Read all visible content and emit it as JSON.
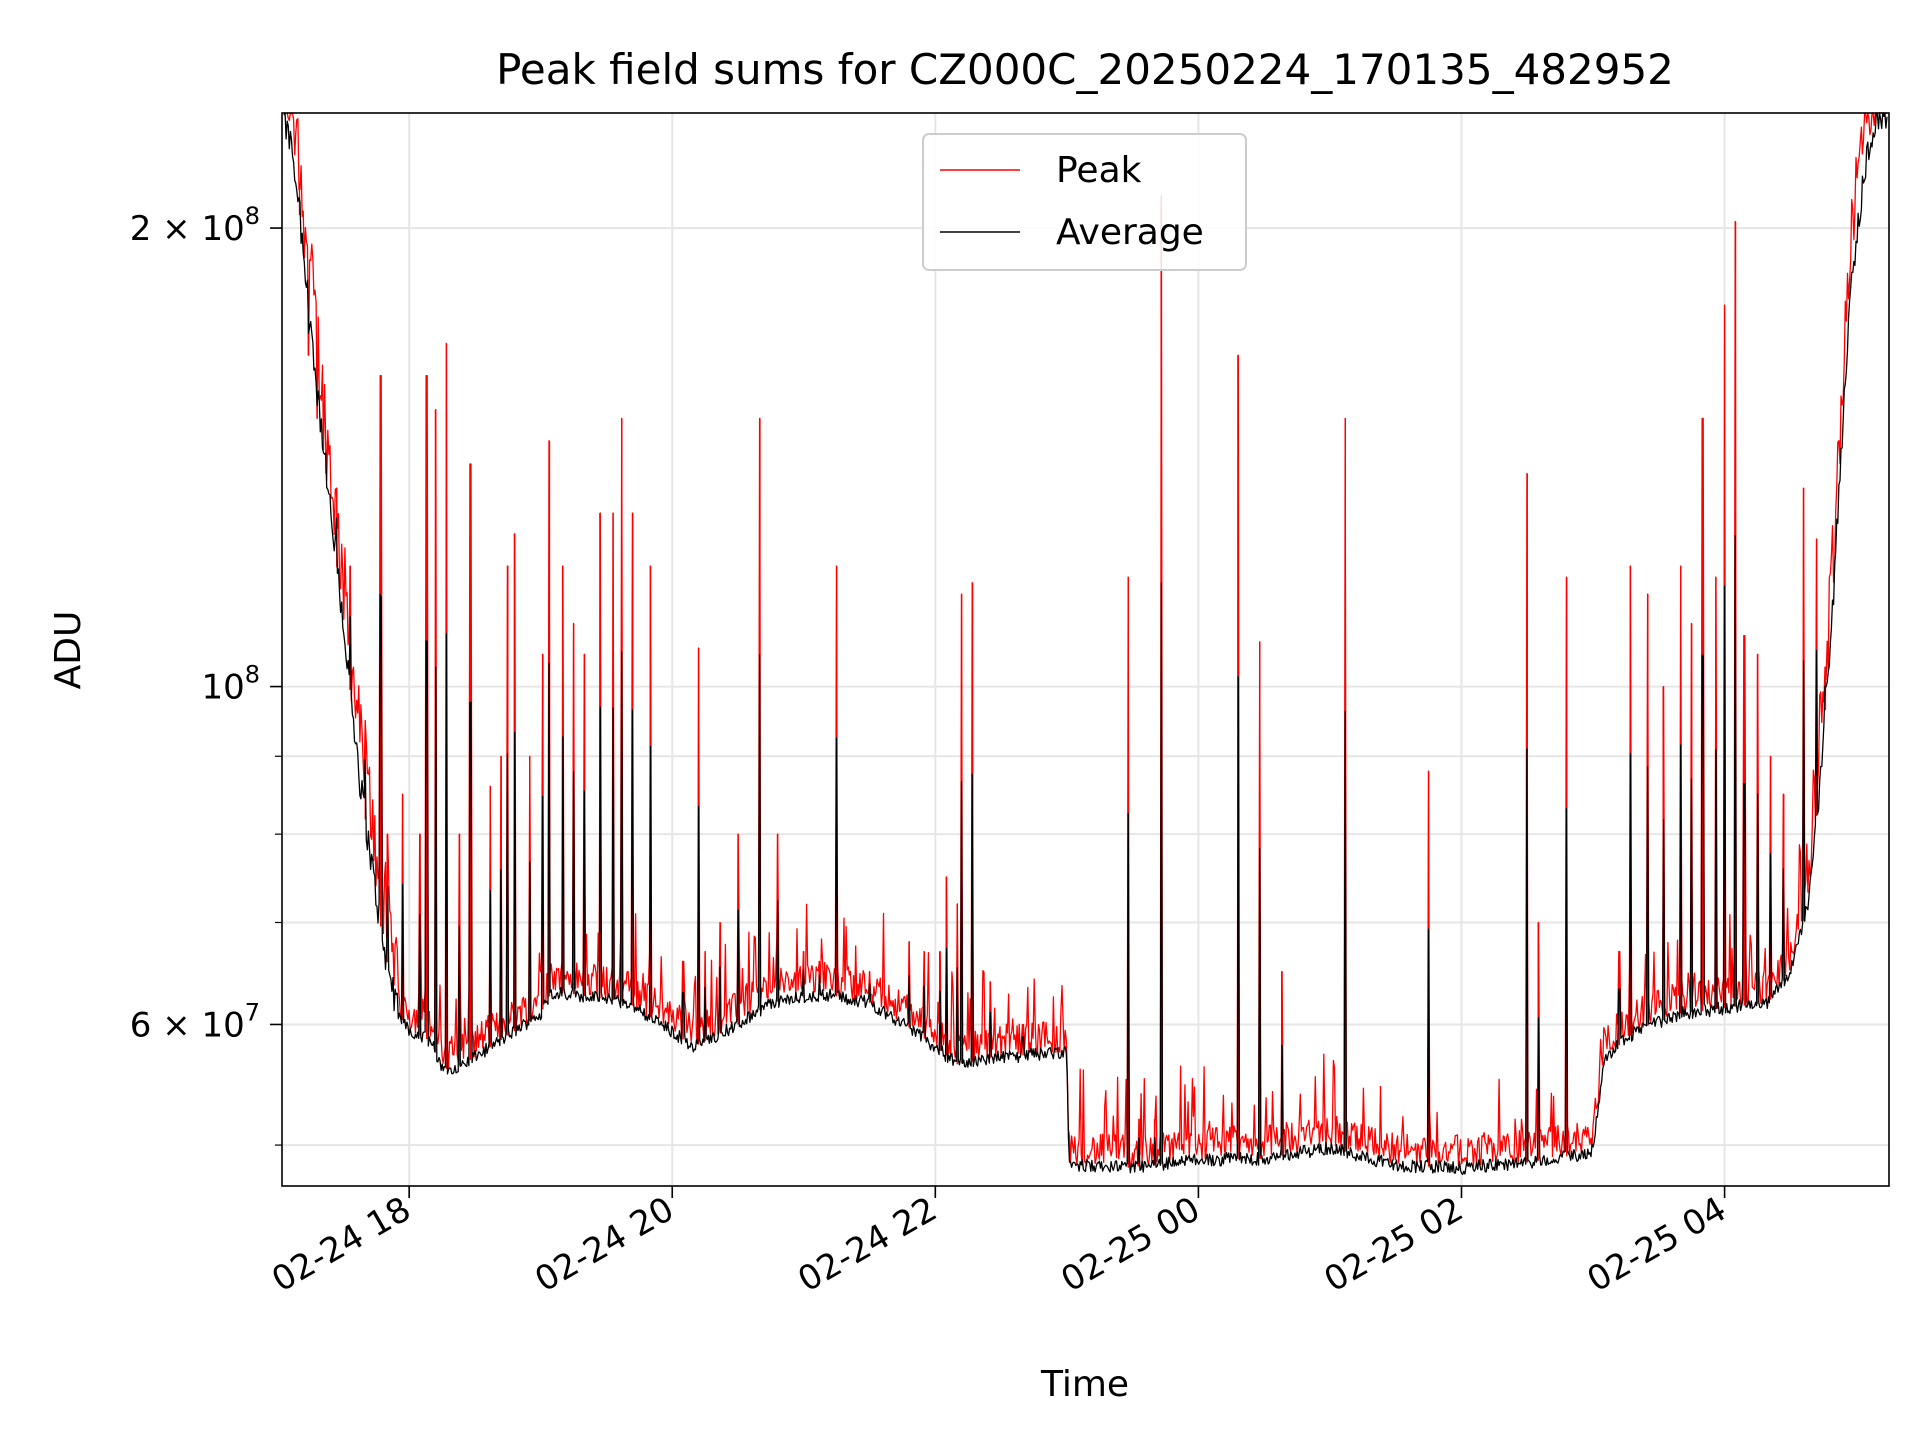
{
  "chart_data": {
    "type": "line",
    "title": "Peak field sums for CZ000C_20250224_170135_482952",
    "xlabel": "Time",
    "ylabel": "ADU",
    "x_scale": "time",
    "y_scale": "log",
    "xlim": [
      "2025-02-24 17:02",
      "2025-02-25 05:15"
    ],
    "ylim": [
      47000000,
      238000000
    ],
    "x_ticks": [
      {
        "value": "2025-02-24 18:00",
        "label": "02-24 18"
      },
      {
        "value": "2025-02-24 20:00",
        "label": "02-24 20"
      },
      {
        "value": "2025-02-24 22:00",
        "label": "02-24 22"
      },
      {
        "value": "2025-02-25 00:00",
        "label": "02-25 00"
      },
      {
        "value": "2025-02-25 02:00",
        "label": "02-25 02"
      },
      {
        "value": "2025-02-25 04:00",
        "label": "02-25 04"
      }
    ],
    "y_major_ticks": [
      {
        "value": 60000000,
        "label": "6 × 10",
        "exp": "7"
      },
      {
        "value": 100000000,
        "label": "10",
        "exp": "8"
      },
      {
        "value": 200000000,
        "label": "2 × 10",
        "exp": "8"
      }
    ],
    "y_minor_ticks": [
      50000000,
      70000000,
      80000000,
      90000000
    ],
    "grid": true,
    "legend": {
      "position": "upper center",
      "entries": [
        {
          "label": "Peak",
          "color": "#ff0000"
        },
        {
          "label": "Average",
          "color": "#000000"
        }
      ]
    },
    "series": [
      {
        "name": "Average",
        "color": "#000000",
        "baseline": [
          [
            "2025-02-24 17:02",
            238000000
          ],
          [
            "2025-02-24 17:07",
            224000000
          ],
          [
            "2025-02-24 17:14",
            180000000
          ],
          [
            "2025-02-24 17:22",
            138000000
          ],
          [
            "2025-02-24 17:30",
            110000000
          ],
          [
            "2025-02-24 17:36",
            90000000
          ],
          [
            "2025-02-24 17:42",
            78000000
          ],
          [
            "2025-02-24 17:48",
            68000000
          ],
          [
            "2025-02-24 17:55",
            61000000
          ],
          [
            "2025-02-24 18:00",
            59500000
          ],
          [
            "2025-02-24 18:10",
            58500000
          ],
          [
            "2025-02-24 18:15",
            56000000
          ],
          [
            "2025-02-24 18:25",
            56500000
          ],
          [
            "2025-02-24 18:45",
            59000000
          ],
          [
            "2025-02-24 19:00",
            61000000
          ],
          [
            "2025-02-24 19:05",
            63000000
          ],
          [
            "2025-02-24 19:15",
            62800000
          ],
          [
            "2025-02-24 19:40",
            62000000
          ],
          [
            "2025-02-24 19:55",
            60000000
          ],
          [
            "2025-02-24 20:10",
            58000000
          ],
          [
            "2025-02-24 20:30",
            60000000
          ],
          [
            "2025-02-24 20:45",
            62000000
          ],
          [
            "2025-02-24 21:10",
            62800000
          ],
          [
            "2025-02-24 21:30",
            62000000
          ],
          [
            "2025-02-24 21:50",
            59500000
          ],
          [
            "2025-02-24 22:10",
            56500000
          ],
          [
            "2025-02-24 22:25",
            57000000
          ],
          [
            "2025-02-24 22:55",
            57500000
          ],
          [
            "2025-02-24 23:00",
            57500000
          ],
          [
            "2025-02-24 23:01",
            48500000
          ],
          [
            "2025-02-24 23:30",
            48300000
          ],
          [
            "2025-02-25 00:00",
            48900000
          ],
          [
            "2025-02-25 00:30",
            49000000
          ],
          [
            "2025-02-25 01:00",
            49800000
          ],
          [
            "2025-02-25 01:30",
            48500000
          ],
          [
            "2025-02-25 02:00",
            48300000
          ],
          [
            "2025-02-25 02:30",
            48700000
          ],
          [
            "2025-02-25 02:58",
            49400000
          ],
          [
            "2025-02-25 03:00",
            49800000
          ],
          [
            "2025-02-25 03:05",
            57000000
          ],
          [
            "2025-02-25 03:20",
            59500000
          ],
          [
            "2025-02-25 03:40",
            61000000
          ],
          [
            "2025-02-25 04:00",
            61500000
          ],
          [
            "2025-02-25 04:20",
            62000000
          ],
          [
            "2025-02-25 04:30",
            65000000
          ],
          [
            "2025-02-25 04:38",
            72000000
          ],
          [
            "2025-02-25 04:43",
            85000000
          ],
          [
            "2025-02-25 04:48",
            105000000
          ],
          [
            "2025-02-25 04:53",
            140000000
          ],
          [
            "2025-02-25 04:58",
            185000000
          ],
          [
            "2025-02-25 05:05",
            225000000
          ],
          [
            "2025-02-25 05:10",
            238000000
          ]
        ]
      },
      {
        "name": "Peak",
        "color": "#ff0000",
        "spikes": [
          [
            "2025-02-24 17:10",
            212000000
          ],
          [
            "2025-02-24 17:14",
            165000000
          ],
          [
            "2025-02-24 17:18",
            150000000
          ],
          [
            "2025-02-24 17:22",
            145000000
          ],
          [
            "2025-02-24 17:27",
            135000000
          ],
          [
            "2025-02-24 17:33",
            120000000
          ],
          [
            "2025-02-24 17:40",
            95000000
          ],
          [
            "2025-02-24 17:47",
            160000000
          ],
          [
            "2025-02-24 17:50",
            80000000
          ],
          [
            "2025-02-24 17:57",
            85000000
          ],
          [
            "2025-02-24 18:05",
            80000000
          ],
          [
            "2025-02-24 18:08",
            160000000
          ],
          [
            "2025-02-24 18:12",
            152000000
          ],
          [
            "2025-02-24 18:17",
            168000000
          ],
          [
            "2025-02-24 18:23",
            80000000
          ],
          [
            "2025-02-24 18:28",
            140000000
          ],
          [
            "2025-02-24 18:37",
            86000000
          ],
          [
            "2025-02-24 18:42",
            90000000
          ],
          [
            "2025-02-24 18:45",
            120000000
          ],
          [
            "2025-02-24 18:48",
            126000000
          ],
          [
            "2025-02-24 18:55",
            90000000
          ],
          [
            "2025-02-24 19:01",
            105000000
          ],
          [
            "2025-02-24 19:04",
            145000000
          ],
          [
            "2025-02-24 19:10",
            120000000
          ],
          [
            "2025-02-24 19:15",
            110000000
          ],
          [
            "2025-02-24 19:20",
            105000000
          ],
          [
            "2025-02-24 19:27",
            130000000
          ],
          [
            "2025-02-24 19:33",
            130000000
          ],
          [
            "2025-02-24 19:37",
            150000000
          ],
          [
            "2025-02-24 19:42",
            130000000
          ],
          [
            "2025-02-24 19:50",
            120000000
          ],
          [
            "2025-02-24 20:05",
            66000000
          ],
          [
            "2025-02-24 20:12",
            106000000
          ],
          [
            "2025-02-24 20:15",
            67000000
          ],
          [
            "2025-02-24 20:22",
            70000000
          ],
          [
            "2025-02-24 20:30",
            80000000
          ],
          [
            "2025-02-24 20:40",
            150000000
          ],
          [
            "2025-02-24 20:48",
            80000000
          ],
          [
            "2025-02-24 21:00",
            67000000
          ],
          [
            "2025-02-24 21:07",
            66000000
          ],
          [
            "2025-02-24 21:15",
            120000000
          ],
          [
            "2025-02-24 21:30",
            65000000
          ],
          [
            "2025-02-24 21:48",
            68000000
          ],
          [
            "2025-02-24 21:55",
            67000000
          ],
          [
            "2025-02-24 22:02",
            67000000
          ],
          [
            "2025-02-24 22:05",
            75000000
          ],
          [
            "2025-02-24 22:10",
            72000000
          ],
          [
            "2025-02-24 22:12",
            115000000
          ],
          [
            "2025-02-24 22:17",
            117000000
          ],
          [
            "2025-02-24 22:25",
            64000000
          ],
          [
            "2025-02-24 22:40",
            60000000
          ],
          [
            "2025-02-24 22:55",
            58000000
          ],
          [
            "2025-02-24 23:28",
            118000000
          ],
          [
            "2025-02-24 23:33",
            52000000
          ],
          [
            "2025-02-24 23:40",
            52000000
          ],
          [
            "2025-02-24 23:43",
            210000000
          ],
          [
            "2025-02-25 00:18",
            165000000
          ],
          [
            "2025-02-25 00:28",
            107000000
          ],
          [
            "2025-02-25 00:38",
            65000000
          ],
          [
            "2025-02-25 01:07",
            150000000
          ],
          [
            "2025-02-25 01:45",
            88000000
          ],
          [
            "2025-02-25 02:30",
            138000000
          ],
          [
            "2025-02-25 02:35",
            70000000
          ],
          [
            "2025-02-25 02:48",
            118000000
          ],
          [
            "2025-02-25 03:12",
            67000000
          ],
          [
            "2025-02-25 03:17",
            120000000
          ],
          [
            "2025-02-25 03:25",
            115000000
          ],
          [
            "2025-02-25 03:32",
            100000000
          ],
          [
            "2025-02-25 03:40",
            120000000
          ],
          [
            "2025-02-25 03:45",
            110000000
          ],
          [
            "2025-02-25 03:50",
            150000000
          ],
          [
            "2025-02-25 03:56",
            118000000
          ],
          [
            "2025-02-25 04:00",
            178000000
          ],
          [
            "2025-02-25 04:05",
            202000000
          ],
          [
            "2025-02-25 04:09",
            108000000
          ],
          [
            "2025-02-25 04:15",
            105000000
          ],
          [
            "2025-02-25 04:21",
            90000000
          ],
          [
            "2025-02-25 04:27",
            85000000
          ],
          [
            "2025-02-25 04:36",
            135000000
          ],
          [
            "2025-02-25 04:42",
            125000000
          ],
          [
            "2025-02-25 04:46",
            103000000
          ]
        ]
      }
    ]
  }
}
